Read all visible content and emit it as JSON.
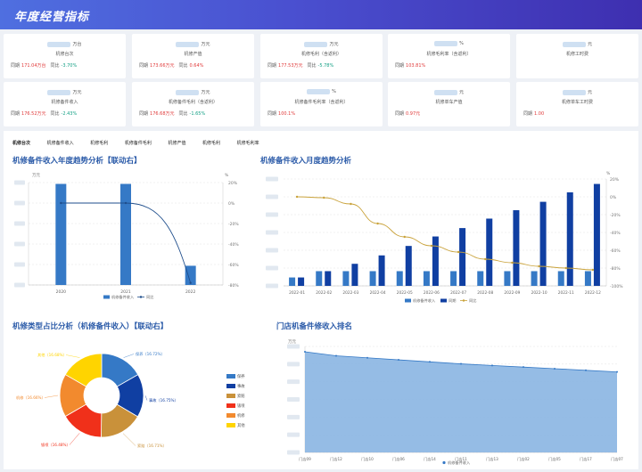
{
  "header": {
    "title": "年度经营指标"
  },
  "kpis": [
    {
      "unit": "万台",
      "name": "机修台次",
      "cmp1_label": "同期",
      "cmp1_value": "171.04万台",
      "cmp2_label": "同比",
      "cmp2_value": "-3.70%",
      "cmp2_color": "green"
    },
    {
      "unit": "万元",
      "name": "机修产值",
      "cmp1_label": "同期",
      "cmp1_value": "173.66万元",
      "cmp2_label": "同比",
      "cmp2_value": "0.64%",
      "cmp2_color": "red"
    },
    {
      "unit": "万元",
      "name": "机修毛利（含返利）",
      "cmp1_label": "同期",
      "cmp1_value": "177.53万元",
      "cmp2_label": "同比",
      "cmp2_value": "-5.78%",
      "cmp2_color": "green"
    },
    {
      "unit": "%",
      "name": "机修毛利率（含返利）",
      "cmp1_label": "同期",
      "cmp1_value": "103.81%",
      "cmp2_label": "",
      "cmp2_value": "",
      "cmp2_color": "red"
    },
    {
      "unit": "元",
      "name": "机修工时费",
      "cmp1_label": "",
      "cmp1_value": "",
      "cmp2_label": "",
      "cmp2_value": "",
      "cmp2_color": "red"
    },
    {
      "unit": "万元",
      "name": "机修备件收入",
      "cmp1_label": "同期",
      "cmp1_value": "176.52万元",
      "cmp2_label": "同比",
      "cmp2_value": "-2.43%",
      "cmp2_color": "green"
    },
    {
      "unit": "万元",
      "name": "机修备件毛利（含返利）",
      "cmp1_label": "同期",
      "cmp1_value": "176.68万元",
      "cmp2_label": "同比",
      "cmp2_value": "-1.65%",
      "cmp2_color": "green"
    },
    {
      "unit": "%",
      "name": "机修备件毛利率（含返利）",
      "cmp1_label": "同期",
      "cmp1_value": "100.1%",
      "cmp2_label": "",
      "cmp2_value": "",
      "cmp2_color": "red"
    },
    {
      "unit": "元",
      "name": "机修单车产值",
      "cmp1_label": "同期",
      "cmp1_value": "0.97元",
      "cmp2_label": "",
      "cmp2_value": "",
      "cmp2_color": "red"
    },
    {
      "unit": "元",
      "name": "机修单车工时费",
      "cmp1_label": "同期",
      "cmp1_value": "1.00",
      "cmp2_label": "",
      "cmp2_value": "",
      "cmp2_color": "red"
    }
  ],
  "tabs": [
    "机修台次",
    "机修备件收入",
    "机修毛利",
    "机修备件毛利",
    "机修产值",
    "机修毛利",
    "机修毛利率"
  ],
  "colors": {
    "bar": "#3579c6",
    "bar_dark": "#103fa2",
    "line": "#1f4e8c",
    "line_gold": "#c9a23a",
    "area": "#8ab5e2"
  },
  "charts": {
    "annual": {
      "title": "机修备件收入年度趋势分析【联动右】",
      "yunit_left": "万元",
      "yunit_right": "%",
      "categories": [
        "2020",
        "2021",
        "2022"
      ],
      "bars": [
        100,
        100,
        19
      ],
      "line": [
        0,
        0,
        -78
      ],
      "right_ticks": [
        "20%",
        "0%",
        "-20%",
        "-40%",
        "-60%",
        "-80%"
      ],
      "legend": [
        "机修备件收入",
        "同比"
      ]
    },
    "monthly": {
      "title": "机修备件收入月度趋势分析",
      "yunit_right": "%",
      "categories": [
        "2022-01",
        "2022-02",
        "2022-03",
        "2022-04",
        "2022-05",
        "2022-06",
        "2022-07",
        "2022-08",
        "2022-09",
        "2022-10",
        "2022-11",
        "2022-12"
      ],
      "bars_light": [
        8,
        14,
        14,
        14,
        14,
        14,
        14,
        14,
        14,
        14,
        14,
        14
      ],
      "bars_dark": [
        8,
        14,
        21,
        29,
        38,
        47,
        55,
        64,
        72,
        80,
        89,
        97
      ],
      "line": [
        0,
        -1,
        -8,
        -30,
        -45,
        -55,
        -62,
        -70,
        -74,
        -78,
        -80,
        -82
      ],
      "right_ticks": [
        "20%",
        "0%",
        "-20%",
        "-40%",
        "-60%",
        "-80%",
        "-100%"
      ],
      "legend": [
        "机修备件收入",
        "同期",
        "同比"
      ]
    },
    "pie": {
      "title": "机修类型占比分析（机修备件收入）【联动右】",
      "slices": [
        {
          "name": "保养",
          "value": 16.72,
          "color": "#3579c6",
          "label": "保养（16.72%）"
        },
        {
          "name": "事故",
          "value": 16.75,
          "color": "#103fa2",
          "label": "事故（16.75%）"
        },
        {
          "name": "索赔",
          "value": 16.71,
          "color": "#c9913a",
          "label": "索赔（16.71%）"
        },
        {
          "name": "钣喷",
          "value": 16.48,
          "color": "#f0301a",
          "label": "钣喷（16.48%）"
        },
        {
          "name": "机修",
          "value": 16.66,
          "color": "#f28a2e",
          "label": "机修（16.66%）"
        },
        {
          "name": "其他",
          "value": 16.68,
          "color": "#ffd400",
          "label": "其他（16.68%）"
        }
      ],
      "legend": [
        "保养",
        "事故",
        "索赔",
        "钣喷",
        "机修",
        "其他"
      ]
    },
    "ranking": {
      "title": "门店机备件修收入排名",
      "yunit": "万元",
      "categories": [
        "门店09",
        "门店12",
        "门店10",
        "门店06",
        "门店14",
        "门店11",
        "门店13",
        "门店02",
        "门店05",
        "门店17",
        "门店07"
      ],
      "values": [
        100,
        99,
        98.5,
        98,
        97.5,
        97,
        96.6,
        96.2,
        95.8,
        95.4,
        95
      ],
      "legend": [
        "机修备件收入"
      ]
    }
  }
}
